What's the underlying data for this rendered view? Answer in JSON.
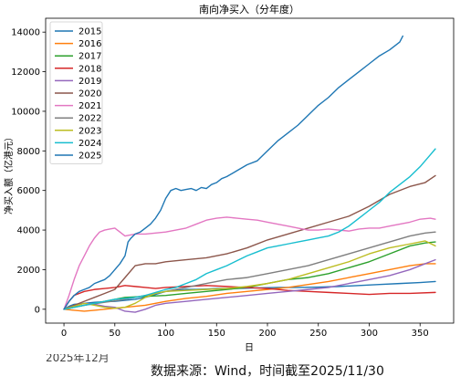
{
  "chart_data": {
    "type": "line",
    "title": "南向净买入（分年度）",
    "xlabel": "日",
    "ylabel": "净买入额（亿港元）",
    "xlim": [
      -18,
      383
    ],
    "ylim": [
      -700,
      14700
    ],
    "xticks": [
      0,
      50,
      100,
      150,
      200,
      250,
      300,
      350
    ],
    "yticks": [
      0,
      2000,
      4000,
      6000,
      8000,
      10000,
      12000,
      14000
    ],
    "grid": false,
    "legend": "top-left",
    "series": [
      {
        "name": "2015",
        "color": "#1f77b4",
        "x": [
          0,
          5,
          10,
          20,
          30,
          40,
          50,
          60,
          70,
          80,
          90,
          100,
          110,
          120,
          130,
          140,
          150,
          170,
          190,
          210,
          230,
          250,
          270,
          290,
          310,
          330,
          350,
          365
        ],
        "y": [
          0,
          150,
          250,
          300,
          350,
          380,
          400,
          450,
          500,
          600,
          750,
          900,
          950,
          1000,
          1000,
          1020,
          1050,
          1050,
          1080,
          1100,
          1100,
          1120,
          1150,
          1200,
          1250,
          1300,
          1350,
          1400
        ]
      },
      {
        "name": "2016",
        "color": "#ff7f0e",
        "x": [
          0,
          10,
          20,
          30,
          40,
          50,
          60,
          70,
          80,
          90,
          100,
          120,
          140,
          160,
          180,
          200,
          220,
          240,
          260,
          280,
          300,
          320,
          340,
          355,
          365
        ],
        "y": [
          0,
          -50,
          -100,
          -50,
          0,
          50,
          100,
          150,
          200,
          300,
          400,
          550,
          650,
          800,
          900,
          1000,
          1100,
          1250,
          1400,
          1600,
          1800,
          2000,
          2200,
          2300,
          2300
        ]
      },
      {
        "name": "2017",
        "color": "#2ca02c",
        "x": [
          0,
          10,
          20,
          30,
          40,
          50,
          60,
          80,
          100,
          120,
          140,
          160,
          180,
          200,
          220,
          240,
          260,
          280,
          300,
          320,
          340,
          355,
          365
        ],
        "y": [
          0,
          100,
          200,
          300,
          400,
          500,
          600,
          650,
          700,
          800,
          900,
          1000,
          1100,
          1300,
          1500,
          1600,
          1800,
          2100,
          2400,
          2800,
          3200,
          3350,
          3400
        ]
      },
      {
        "name": "2018",
        "color": "#d62728",
        "x": [
          0,
          5,
          10,
          20,
          30,
          40,
          50,
          60,
          70,
          80,
          90,
          100,
          120,
          140,
          160,
          180,
          200,
          220,
          240,
          260,
          280,
          300,
          320,
          340,
          365
        ],
        "y": [
          0,
          400,
          700,
          900,
          1000,
          1050,
          1100,
          1200,
          1150,
          1100,
          1050,
          1100,
          1150,
          1200,
          1150,
          1100,
          1050,
          950,
          900,
          850,
          800,
          750,
          800,
          800,
          850
        ]
      },
      {
        "name": "2019",
        "color": "#9467bd",
        "x": [
          0,
          10,
          20,
          30,
          40,
          50,
          60,
          70,
          80,
          90,
          100,
          120,
          140,
          160,
          180,
          200,
          220,
          240,
          260,
          280,
          300,
          320,
          340,
          355,
          365
        ],
        "y": [
          0,
          200,
          300,
          250,
          150,
          100,
          -100,
          -150,
          0,
          200,
          300,
          400,
          500,
          600,
          700,
          800,
          900,
          1000,
          1100,
          1300,
          1500,
          1700,
          2000,
          2300,
          2500
        ]
      },
      {
        "name": "2020",
        "color": "#8c564b",
        "x": [
          0,
          10,
          20,
          30,
          40,
          50,
          60,
          70,
          80,
          90,
          100,
          120,
          140,
          160,
          180,
          200,
          220,
          240,
          260,
          280,
          300,
          320,
          340,
          355,
          365
        ],
        "y": [
          0,
          200,
          400,
          600,
          800,
          1000,
          1600,
          2200,
          2300,
          2300,
          2400,
          2500,
          2600,
          2800,
          3100,
          3500,
          3800,
          4100,
          4400,
          4700,
          5200,
          5800,
          6200,
          6400,
          6750
        ]
      },
      {
        "name": "2021",
        "color": "#e377c2",
        "x": [
          0,
          5,
          10,
          15,
          20,
          25,
          30,
          35,
          40,
          45,
          50,
          55,
          60,
          70,
          80,
          90,
          100,
          110,
          120,
          130,
          140,
          150,
          160,
          170,
          180,
          190,
          200,
          210,
          220,
          230,
          240,
          250,
          260,
          270,
          280,
          290,
          300,
          310,
          320,
          330,
          340,
          350,
          360,
          365
        ],
        "y": [
          0,
          700,
          1500,
          2200,
          2700,
          3200,
          3600,
          3900,
          4000,
          4050,
          4100,
          3900,
          3700,
          3800,
          3800,
          3850,
          3900,
          4000,
          4100,
          4300,
          4500,
          4600,
          4650,
          4600,
          4550,
          4500,
          4400,
          4300,
          4200,
          4100,
          4000,
          4000,
          4050,
          4000,
          3950,
          4050,
          4100,
          4100,
          4200,
          4300,
          4400,
          4550,
          4600,
          4550
        ]
      },
      {
        "name": "2022",
        "color": "#7f7f7f",
        "x": [
          0,
          10,
          20,
          40,
          60,
          80,
          100,
          120,
          140,
          160,
          180,
          200,
          220,
          240,
          260,
          280,
          300,
          320,
          340,
          355,
          365
        ],
        "y": [
          0,
          100,
          200,
          350,
          500,
          700,
          900,
          1100,
          1300,
          1500,
          1600,
          1800,
          2000,
          2200,
          2500,
          2800,
          3100,
          3400,
          3700,
          3850,
          3900
        ]
      },
      {
        "name": "2023",
        "color": "#bcbd22",
        "x": [
          0,
          10,
          20,
          30,
          40,
          50,
          60,
          70,
          80,
          90,
          100,
          120,
          140,
          160,
          180,
          200,
          220,
          240,
          260,
          280,
          300,
          320,
          340,
          355,
          365
        ],
        "y": [
          0,
          150,
          300,
          200,
          100,
          50,
          100,
          300,
          600,
          800,
          900,
          950,
          1000,
          1050,
          1150,
          1300,
          1500,
          1800,
          2100,
          2400,
          2800,
          3100,
          3300,
          3450,
          3200
        ]
      },
      {
        "name": "2024",
        "color": "#17becf",
        "x": [
          0,
          10,
          20,
          30,
          40,
          50,
          60,
          70,
          80,
          90,
          100,
          110,
          120,
          130,
          140,
          150,
          160,
          170,
          180,
          190,
          200,
          210,
          220,
          230,
          240,
          250,
          260,
          270,
          280,
          290,
          300,
          310,
          320,
          330,
          340,
          350,
          360,
          365
        ],
        "y": [
          0,
          100,
          200,
          300,
          400,
          500,
          550,
          600,
          700,
          850,
          1000,
          1100,
          1300,
          1500,
          1800,
          2000,
          2200,
          2450,
          2700,
          2900,
          3100,
          3200,
          3300,
          3400,
          3500,
          3600,
          3700,
          3900,
          4200,
          4600,
          5000,
          5400,
          5900,
          6300,
          6700,
          7200,
          7800,
          8100
        ]
      },
      {
        "name": "2025",
        "color": "#1f77b4",
        "x": [
          0,
          5,
          10,
          15,
          20,
          25,
          30,
          35,
          40,
          45,
          50,
          55,
          60,
          63,
          66,
          70,
          75,
          80,
          85,
          90,
          95,
          100,
          105,
          110,
          115,
          120,
          125,
          130,
          135,
          140,
          145,
          150,
          155,
          160,
          170,
          180,
          190,
          200,
          210,
          220,
          230,
          240,
          250,
          260,
          270,
          280,
          290,
          300,
          310,
          320,
          330,
          333
        ],
        "y": [
          0,
          400,
          700,
          900,
          1000,
          1100,
          1300,
          1400,
          1500,
          1700,
          2000,
          2300,
          2700,
          3400,
          3600,
          3800,
          3900,
          4100,
          4300,
          4600,
          5000,
          5600,
          6000,
          6100,
          6000,
          6050,
          6100,
          6000,
          6150,
          6100,
          6300,
          6400,
          6600,
          6700,
          7000,
          7300,
          7500,
          8000,
          8500,
          8900,
          9300,
          9800,
          10300,
          10700,
          11200,
          11600,
          12000,
          12400,
          12800,
          13100,
          13500,
          13800
        ]
      }
    ]
  },
  "footer": {
    "source": "数据来源：Wind，时间截至2025/11/30",
    "clipped_date": "2025年12月"
  }
}
